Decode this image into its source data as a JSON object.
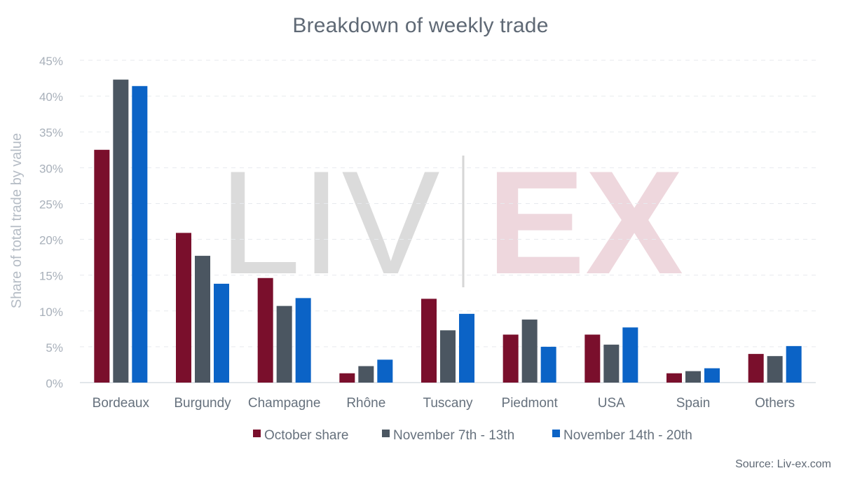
{
  "chart_data": {
    "type": "bar",
    "title": "Breakdown of weekly trade",
    "xlabel": "",
    "ylabel": "Share of total trade by value",
    "ylim": [
      0,
      45
    ],
    "yticks": [
      0,
      5,
      10,
      15,
      20,
      25,
      30,
      35,
      40,
      45
    ],
    "ytick_labels": [
      "0%",
      "5%",
      "10%",
      "15%",
      "20%",
      "25%",
      "30%",
      "35%",
      "40%",
      "45%"
    ],
    "grid": true,
    "legend_position": "bottom",
    "categories": [
      "Bordeaux",
      "Burgundy",
      "Champagne",
      "Rhône",
      "Tuscany",
      "Piedmont",
      "USA",
      "Spain",
      "Others"
    ],
    "series": [
      {
        "name": "October share",
        "color": "#7a0f2c",
        "values": [
          32.5,
          20.9,
          14.6,
          1.3,
          11.7,
          6.7,
          6.7,
          1.3,
          4.0
        ]
      },
      {
        "name": "November 7th - 13th",
        "color": "#4b5661",
        "values": [
          42.3,
          17.7,
          10.7,
          2.3,
          7.3,
          8.8,
          5.3,
          1.6,
          3.7
        ]
      },
      {
        "name": "November 14th - 20th",
        "color": "#0b63c6",
        "values": [
          41.4,
          13.8,
          11.8,
          3.2,
          9.6,
          5.0,
          7.7,
          2.0,
          5.1
        ]
      }
    ],
    "source": "Source: Liv-ex.com",
    "watermark": {
      "left": "LIV",
      "right": "EX"
    }
  }
}
